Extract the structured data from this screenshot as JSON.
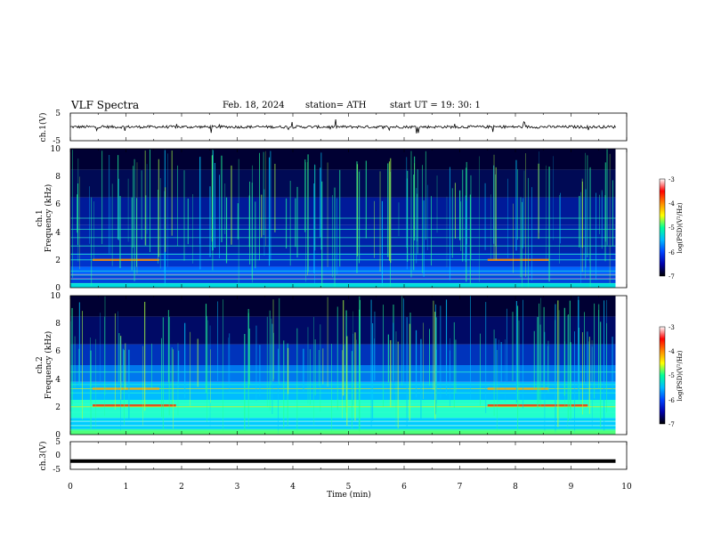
{
  "header": {
    "title": "VLF  Spectra",
    "date": "Feb. 18, 2024",
    "station": "station= ATH",
    "start_ut": "start  UT  =   19: 30: 1"
  },
  "chart_data": {
    "type": "heatmap",
    "xlabel": "Time  (min)",
    "xlim": [
      0,
      10
    ],
    "x_ticks": [
      "0",
      "1",
      "2",
      "3",
      "4",
      "5",
      "6",
      "7",
      "8",
      "9",
      "10"
    ],
    "panels": [
      {
        "id": "ch1-waveform",
        "type": "line",
        "ylabel": "ch.1(V)",
        "ylim": [
          -5,
          5
        ],
        "y_ticks": [
          "5",
          "-5"
        ],
        "baseline_v": 0,
        "x_end_min": 9.8
      },
      {
        "id": "ch1-spectrogram",
        "type": "heatmap",
        "ylabel_channel": "ch.1",
        "ylabel": "Frequency  (kHz)",
        "ylim": [
          0,
          10
        ],
        "y_ticks": [
          "0",
          "2",
          "4",
          "6",
          "8",
          "10"
        ],
        "x_end_min": 9.8,
        "colorbar": {
          "label": "log(PSD)(V²/Hz)",
          "range": [
            -7,
            -3
          ],
          "ticks": [
            "-3",
            "-4",
            "-5",
            "-6",
            "-7"
          ],
          "colors": [
            "#000000",
            "#0000aa",
            "#0044ff",
            "#00bbff",
            "#00ff99",
            "#ffff00",
            "#ff8800",
            "#ff0000",
            "#ffffff"
          ]
        },
        "lines_khz": [
          0.3,
          0.6,
          0.9,
          1.2,
          2.0,
          2.4,
          3.0,
          3.6,
          4.2,
          5.0
        ]
      },
      {
        "id": "ch2-spectrogram",
        "type": "heatmap",
        "ylabel_channel": "ch.2",
        "ylabel": "Frequency  (kHz)",
        "ylim": [
          0,
          10
        ],
        "y_ticks": [
          "0",
          "2",
          "4",
          "6",
          "8",
          "10"
        ],
        "x_end_min": 9.8,
        "colorbar": {
          "label": "log(PSD)(V²/Hz)",
          "range": [
            -7,
            -3
          ],
          "ticks": [
            "-3",
            "-4",
            "-5",
            "-6",
            "-7"
          ],
          "colors": [
            "#000000",
            "#0000aa",
            "#0044ff",
            "#00bbff",
            "#00ff99",
            "#ffff00",
            "#ff8800",
            "#ff0000",
            "#ffffff"
          ]
        },
        "lines_khz": [
          0.3,
          0.6,
          1.0,
          1.6,
          2.0,
          2.2,
          3.0,
          3.3,
          3.6,
          4.5
        ]
      },
      {
        "id": "ch3-waveform",
        "type": "line",
        "ylabel": "ch.3(V)",
        "ylim": [
          -5,
          5
        ],
        "y_ticks": [
          "5",
          "0",
          "-5"
        ],
        "baseline_v": -2,
        "x_end_min": 9.8
      }
    ]
  }
}
